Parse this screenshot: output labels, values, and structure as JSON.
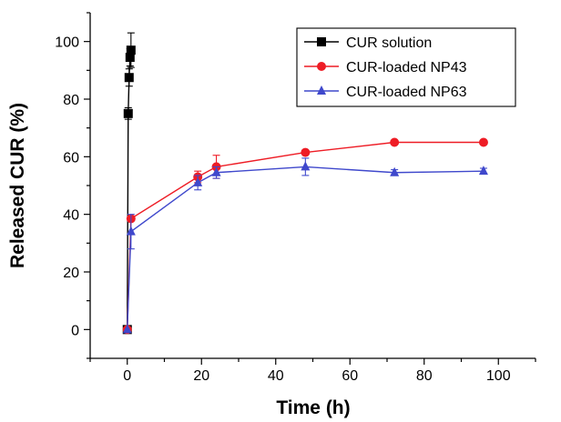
{
  "chart_data": {
    "type": "line",
    "title": "",
    "xlabel": "Time (h)",
    "ylabel": "Released CUR (%)",
    "xlim": [
      -10,
      110
    ],
    "ylim": [
      -10,
      110
    ],
    "x_ticks": [
      0,
      20,
      40,
      60,
      80,
      100
    ],
    "y_ticks": [
      0,
      20,
      40,
      60,
      80,
      100
    ],
    "grid": false,
    "legend_position": "top-right",
    "series": [
      {
        "name": "CUR solution",
        "color": "#000000",
        "marker": "square",
        "x": [
          0,
          0.25,
          0.5,
          0.75,
          1
        ],
        "y": [
          0,
          75,
          87.5,
          94.5,
          97
        ],
        "err": [
          0,
          2,
          3,
          3,
          6
        ]
      },
      {
        "name": "CUR-loaded NP43",
        "color": "#ee1c25",
        "marker": "circle",
        "x": [
          0,
          1,
          19,
          24,
          48,
          72,
          96
        ],
        "y": [
          0,
          38.5,
          53,
          56.5,
          61.5,
          65,
          65
        ],
        "err": [
          0,
          0,
          2,
          4,
          0,
          0,
          0
        ]
      },
      {
        "name": "CUR-loaded NP63",
        "color": "#3f48cc",
        "marker": "triangle",
        "x": [
          0,
          1,
          19,
          24,
          48,
          72,
          96
        ],
        "y": [
          0,
          34,
          51,
          54.5,
          56.5,
          54.5,
          55
        ],
        "err": [
          0,
          6,
          2.5,
          2,
          3,
          1,
          1
        ]
      }
    ]
  }
}
